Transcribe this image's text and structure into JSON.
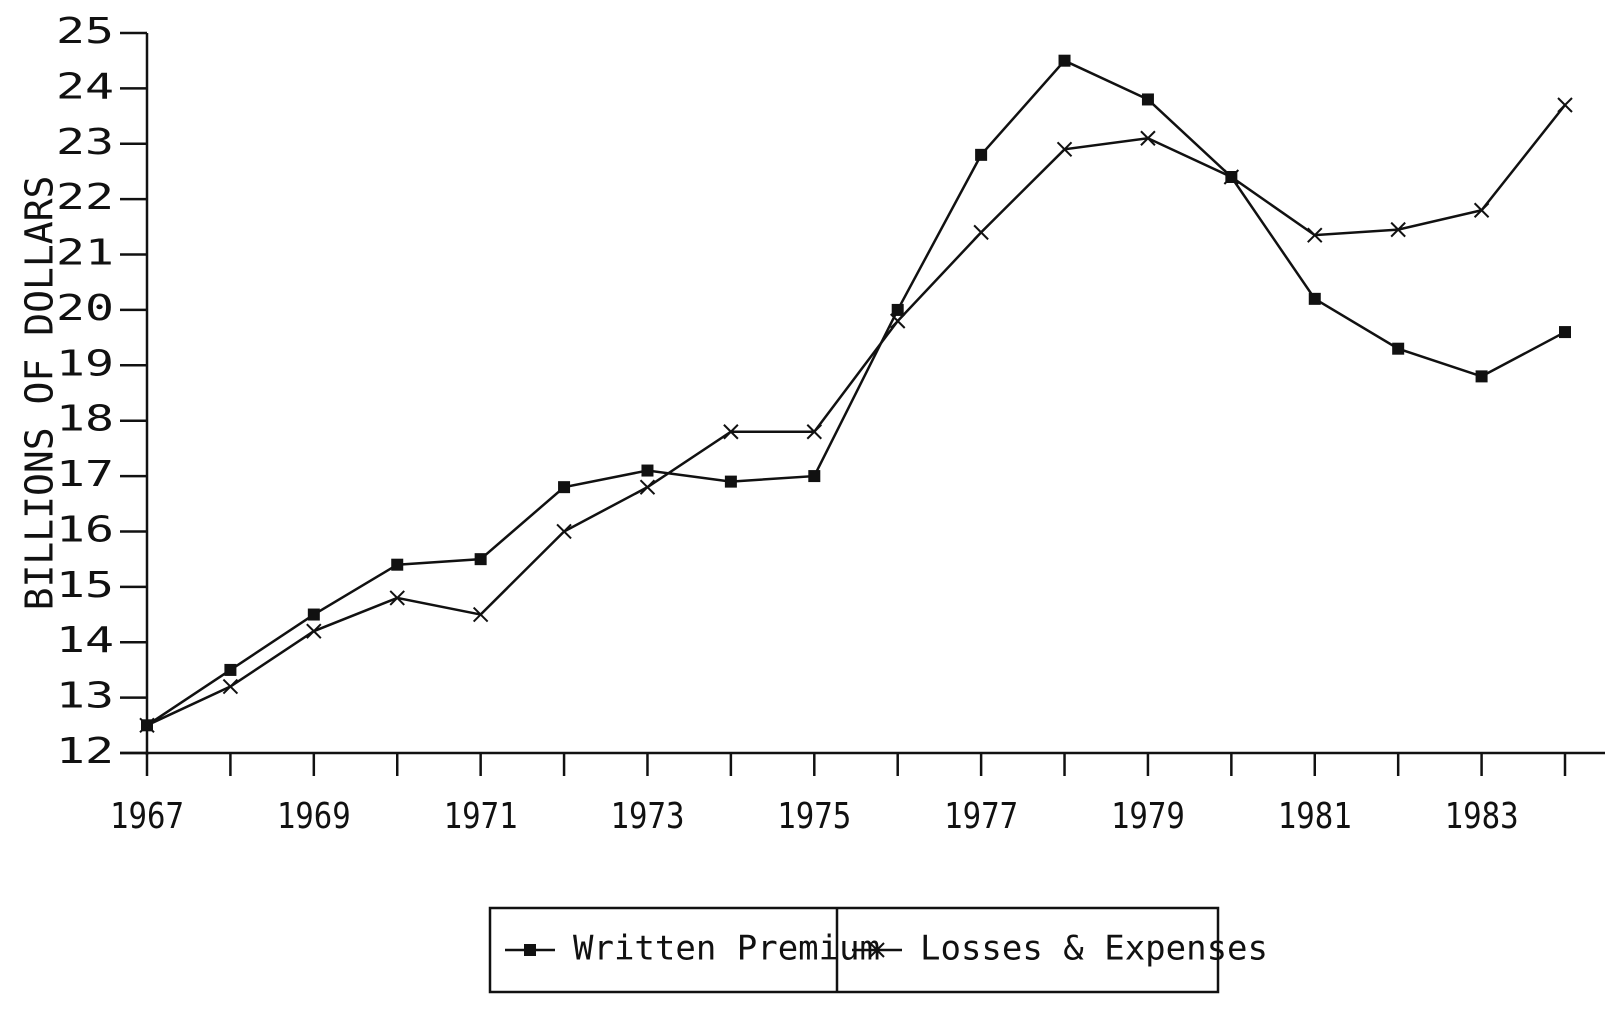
{
  "chart_data": {
    "type": "line",
    "y_label": "BILLIONS OF DOLLARS",
    "x": [
      1967,
      1968,
      1969,
      1970,
      1971,
      1972,
      1973,
      1974,
      1975,
      1976,
      1977,
      1978,
      1979,
      1980,
      1981,
      1982,
      1983,
      1984
    ],
    "series": [
      {
        "name": "Written Premium",
        "color": "#111111",
        "marker": "square",
        "values": [
          12.5,
          13.5,
          14.5,
          15.4,
          15.5,
          16.8,
          17.1,
          16.9,
          17.0,
          20.0,
          22.8,
          24.5,
          23.8,
          22.4,
          20.2,
          19.3,
          18.8,
          19.6
        ]
      },
      {
        "name": "Losses & Expenses",
        "color": "#111111",
        "marker": "x",
        "values": [
          12.5,
          13.2,
          14.2,
          14.8,
          14.5,
          16.0,
          16.8,
          17.8,
          17.8,
          19.8,
          21.4,
          22.9,
          23.1,
          22.4,
          21.35,
          21.45,
          21.8,
          23.7
        ]
      }
    ],
    "xlim": [
      1967,
      1984
    ],
    "xticks": [
      1967,
      1969,
      1971,
      1973,
      1975,
      1977,
      1979,
      1981,
      1983
    ],
    "xminor_ticks": [
      1968,
      1970,
      1972,
      1974,
      1976,
      1978,
      1980,
      1982,
      1984
    ],
    "ylim": [
      12,
      25
    ],
    "yticks": [
      12,
      13,
      14,
      15,
      16,
      17,
      18,
      19,
      20,
      21,
      22,
      23,
      24,
      25
    ],
    "grid": false,
    "legend": "bottom"
  }
}
